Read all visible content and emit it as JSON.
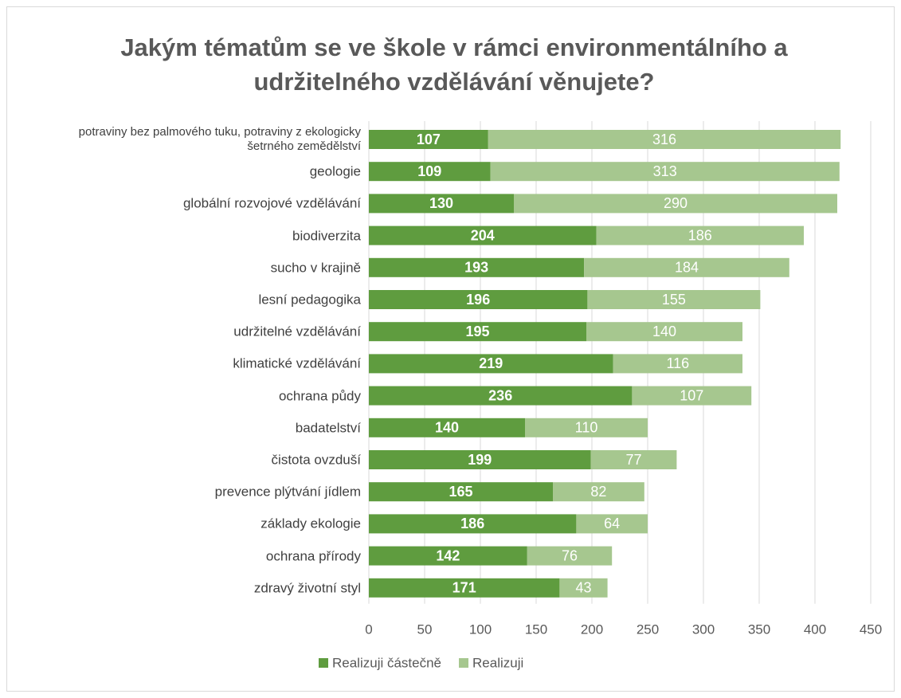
{
  "chart_data": {
    "type": "bar",
    "orientation": "horizontal",
    "stacked": true,
    "title": "Jakým tématům se ve škole v rámci environmentálního a udržitelného vzdělávání věnujete?",
    "categories": [
      "potraviny bez palmového tuku, potraviny z ekologicky šetrného zemědělství",
      "geologie",
      "globální rozvojové vzdělávání",
      "biodiverzita",
      "sucho v krajině",
      "lesní pedagogika",
      "udržitelné vzdělávání",
      "klimatické vzdělávání",
      "ochrana půdy",
      "badatelství",
      "čistota ovzduší",
      "prevence plýtvání jídlem",
      "základy ekologie",
      "ochrana přírody",
      "zdravý životní styl"
    ],
    "series": [
      {
        "name": "Realizuji částečně",
        "color": "#5f9c3f",
        "values": [
          107,
          109,
          130,
          204,
          193,
          196,
          195,
          219,
          236,
          140,
          199,
          165,
          186,
          142,
          171
        ]
      },
      {
        "name": "Realizuji",
        "color": "#a6c78f",
        "values": [
          316,
          313,
          290,
          186,
          184,
          155,
          140,
          116,
          107,
          110,
          77,
          82,
          64,
          76,
          43
        ]
      }
    ],
    "xlim": [
      0,
      450
    ],
    "xticks": [
      0,
      50,
      100,
      150,
      200,
      250,
      300,
      350,
      400,
      450
    ],
    "grid": true,
    "legend": "bottom"
  }
}
